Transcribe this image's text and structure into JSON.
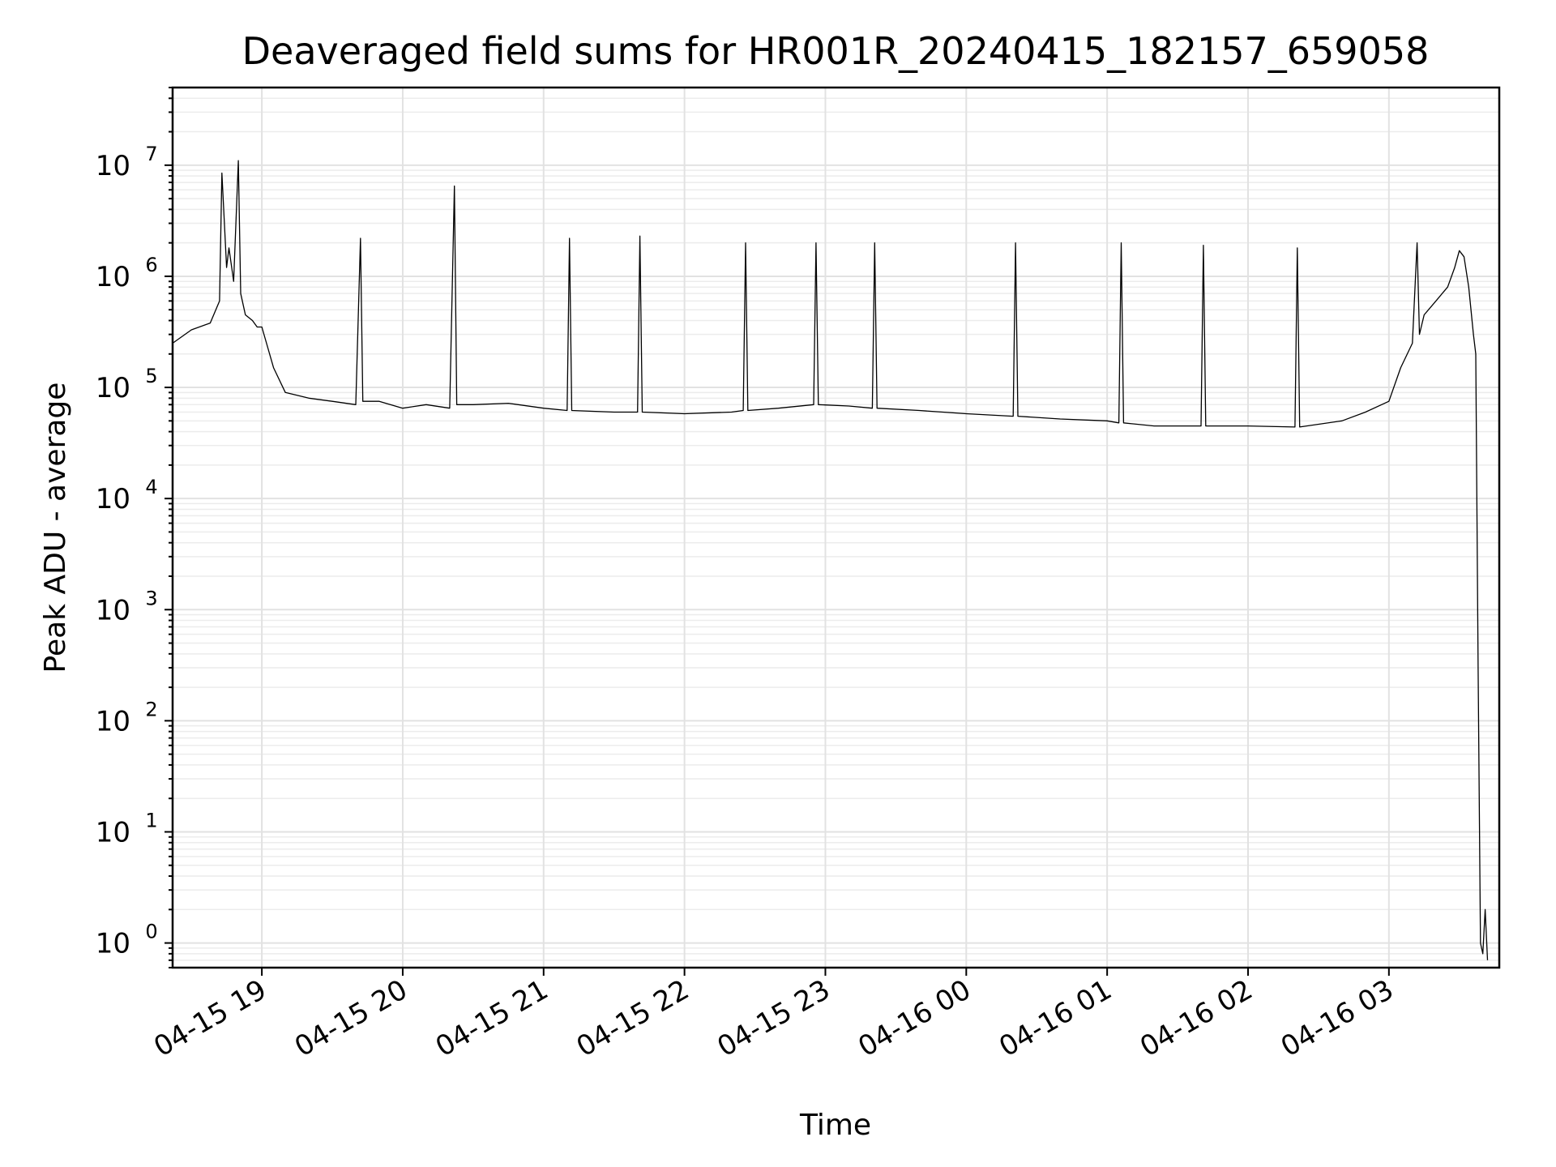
{
  "chart_data": {
    "type": "line",
    "title": "Deaveraged field sums for HR001R_20240415_182157_659058",
    "xlabel": "Time",
    "ylabel": "Peak ADU - average",
    "y_scale": "log",
    "ylim": [
      0.6,
      50000000
    ],
    "xlim": [
      "2024-04-15 18:22",
      "2024-04-16 03:47"
    ],
    "x_ticks": [
      "04-15 19",
      "04-15 20",
      "04-15 21",
      "04-15 22",
      "04-15 23",
      "04-16 00",
      "04-16 01",
      "04-16 02",
      "04-16 03"
    ],
    "y_ticks": [
      {
        "base": "10",
        "exp": "0"
      },
      {
        "base": "10",
        "exp": "1"
      },
      {
        "base": "10",
        "exp": "2"
      },
      {
        "base": "10",
        "exp": "3"
      },
      {
        "base": "10",
        "exp": "4"
      },
      {
        "base": "10",
        "exp": "5"
      },
      {
        "base": "10",
        "exp": "6"
      },
      {
        "base": "10",
        "exp": "7"
      }
    ],
    "grid": true,
    "line_color": "#000000",
    "series": [
      {
        "x": [
          "2024-04-15 18:22",
          "2024-04-15 18:30",
          "2024-04-15 18:38",
          "2024-04-15 18:42",
          "2024-04-15 18:43",
          "2024-04-15 18:45",
          "2024-04-15 18:46",
          "2024-04-15 18:48",
          "2024-04-15 18:50",
          "2024-04-15 18:51",
          "2024-04-15 18:53",
          "2024-04-15 18:56",
          "2024-04-15 18:58",
          "2024-04-15 19:00",
          "2024-04-15 19:05",
          "2024-04-15 19:10",
          "2024-04-15 19:20",
          "2024-04-15 19:30",
          "2024-04-15 19:40",
          "2024-04-15 19:42",
          "2024-04-15 19:43",
          "2024-04-15 19:50",
          "2024-04-15 20:00",
          "2024-04-15 20:10",
          "2024-04-15 20:20",
          "2024-04-15 20:22",
          "2024-04-15 20:23",
          "2024-04-15 20:30",
          "2024-04-15 20:45",
          "2024-04-15 21:00",
          "2024-04-15 21:10",
          "2024-04-15 21:11",
          "2024-04-15 21:12",
          "2024-04-15 21:30",
          "2024-04-15 21:40",
          "2024-04-15 21:41",
          "2024-04-15 21:42",
          "2024-04-15 22:00",
          "2024-04-15 22:20",
          "2024-04-15 22:25",
          "2024-04-15 22:26",
          "2024-04-15 22:27",
          "2024-04-15 22:40",
          "2024-04-15 22:55",
          "2024-04-15 22:56",
          "2024-04-15 22:57",
          "2024-04-15 23:10",
          "2024-04-15 23:20",
          "2024-04-15 23:21",
          "2024-04-15 23:22",
          "2024-04-15 23:40",
          "2024-04-16 00:00",
          "2024-04-16 00:20",
          "2024-04-16 00:21",
          "2024-04-16 00:22",
          "2024-04-16 00:40",
          "2024-04-16 01:00",
          "2024-04-16 01:05",
          "2024-04-16 01:06",
          "2024-04-16 01:07",
          "2024-04-16 01:20",
          "2024-04-16 01:40",
          "2024-04-16 01:41",
          "2024-04-16 01:42",
          "2024-04-16 02:00",
          "2024-04-16 02:20",
          "2024-04-16 02:21",
          "2024-04-16 02:22",
          "2024-04-16 02:40",
          "2024-04-16 02:50",
          "2024-04-16 03:00",
          "2024-04-16 03:05",
          "2024-04-16 03:10",
          "2024-04-16 03:12",
          "2024-04-16 03:13",
          "2024-04-16 03:15",
          "2024-04-16 03:20",
          "2024-04-16 03:25",
          "2024-04-16 03:28",
          "2024-04-16 03:30",
          "2024-04-16 03:32",
          "2024-04-16 03:34",
          "2024-04-16 03:36",
          "2024-04-16 03:37",
          "2024-04-16 03:38",
          "2024-04-16 03:39",
          "2024-04-16 03:40",
          "2024-04-16 03:41",
          "2024-04-16 03:42"
        ],
        "y": [
          250000,
          330000,
          380000,
          600000,
          8500000,
          1200000,
          1800000,
          900000,
          11000000,
          700000,
          450000,
          400000,
          350000,
          350000,
          150000,
          90000,
          80000,
          75000,
          70000,
          2200000,
          75000,
          75000,
          65000,
          70000,
          65000,
          6500000,
          70000,
          70000,
          72000,
          65000,
          62000,
          2200000,
          62000,
          60000,
          60000,
          2300000,
          60000,
          58000,
          60000,
          62000,
          2000000,
          62000,
          65000,
          70000,
          2000000,
          70000,
          68000,
          65000,
          2000000,
          65000,
          62000,
          58000,
          55000,
          2000000,
          55000,
          52000,
          50000,
          48000,
          2000000,
          48000,
          45000,
          45000,
          1900000,
          45000,
          45000,
          44000,
          1800000,
          44000,
          50000,
          60000,
          75000,
          150000,
          250000,
          2000000,
          300000,
          450000,
          600000,
          800000,
          1200000,
          1700000,
          1500000,
          800000,
          300000,
          200000,
          300,
          1,
          0.8,
          2,
          0.7
        ]
      }
    ]
  }
}
